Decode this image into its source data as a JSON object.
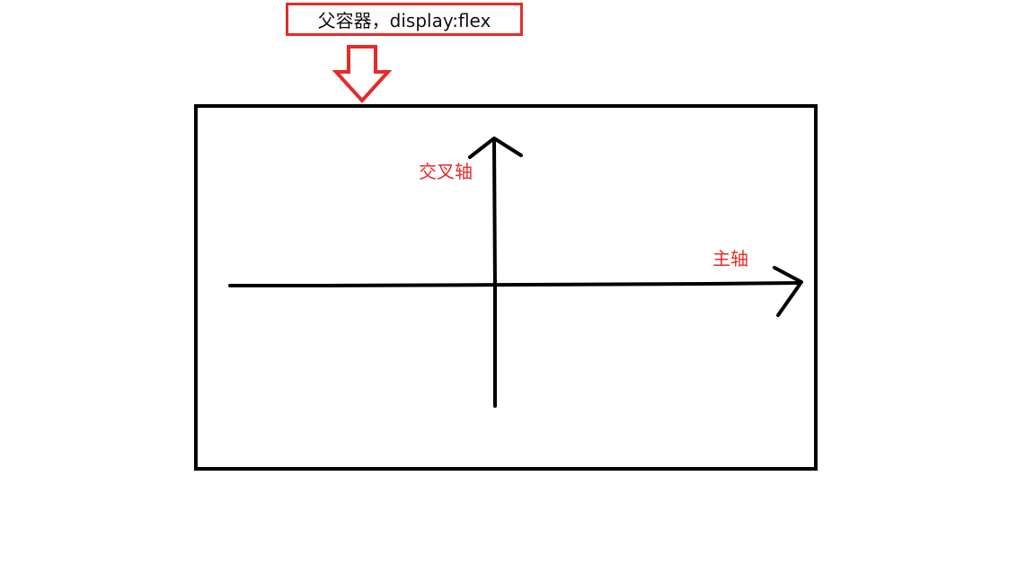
{
  "callout": {
    "text": "父容器，display:flex",
    "border_color": "#e52b2b"
  },
  "labels": {
    "cross_axis": "交叉轴",
    "main_axis": "主轴",
    "color": "#e52b2b"
  },
  "stroke_color": "#000000"
}
